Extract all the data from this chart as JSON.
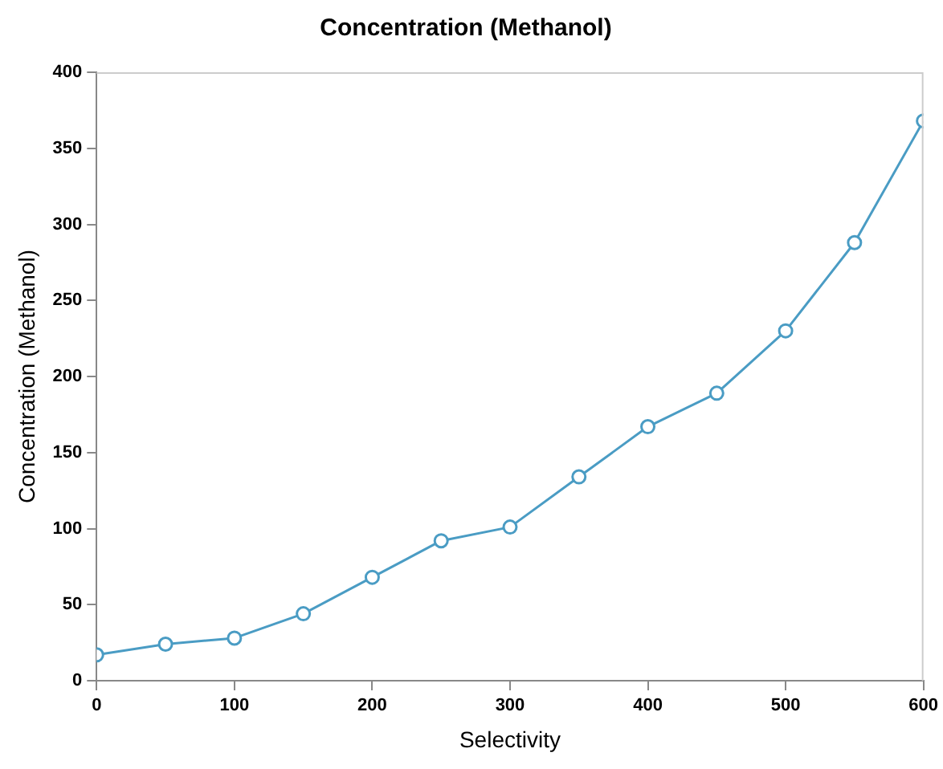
{
  "chart_data": {
    "type": "line",
    "title": "Concentration (Methanol)",
    "xlabel": "Selectivity",
    "ylabel": "Concentration (Methanol)",
    "x": [
      0,
      50,
      100,
      150,
      200,
      250,
      300,
      350,
      400,
      450,
      500,
      550,
      600
    ],
    "series": [
      {
        "color": "#4a9cc4",
        "values": [
          17,
          24,
          28,
          44,
          68,
          92,
          101,
          134,
          167,
          189,
          230,
          288,
          368
        ]
      }
    ],
    "xlim": [
      0,
      600
    ],
    "xticks": [
      0,
      100,
      200,
      300,
      400,
      500,
      600
    ],
    "ylim": [
      0,
      400
    ],
    "yticks": [
      0,
      50,
      100,
      150,
      200,
      250,
      300,
      350,
      400
    ],
    "grid": false,
    "legend": false,
    "marker": "circle",
    "line_style": "solid"
  }
}
